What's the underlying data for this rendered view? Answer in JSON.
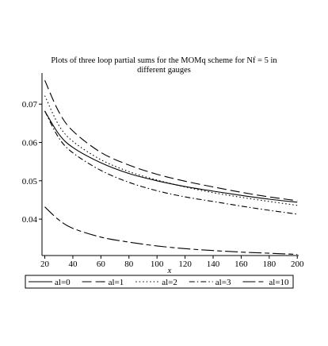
{
  "chart_data": {
    "type": "line",
    "title": [
      "Plots of three loop partial sums for the MOMq scheme for Nf = 5 in",
      "different gauges"
    ],
    "xlabel": "x",
    "ylabel": "",
    "xlim": [
      18,
      201
    ],
    "ylim": [
      0.0305,
      0.0775
    ],
    "xticks": [
      20,
      40,
      60,
      80,
      100,
      120,
      140,
      160,
      180,
      200
    ],
    "yticks": [
      0.04,
      0.05,
      0.06,
      0.07
    ],
    "ytick_labels": [
      "0.04",
      "0.05",
      "0.06",
      "0.07"
    ],
    "grid": false,
    "legend_position": "bottom",
    "series": [
      {
        "name": "al=0",
        "dash": "solid",
        "x": [
          20,
          30,
          40,
          60,
          80,
          100,
          120,
          140,
          160,
          180,
          200
        ],
        "y": [
          0.0682,
          0.0622,
          0.0587,
          0.0547,
          0.0519,
          0.05,
          0.0485,
          0.0473,
          0.0462,
          0.0452,
          0.0444
        ]
      },
      {
        "name": "al=1",
        "dash": "long-dash",
        "x": [
          20,
          30,
          40,
          60,
          80,
          100,
          120,
          140,
          160,
          180,
          200
        ],
        "y": [
          0.0762,
          0.068,
          0.063,
          0.0574,
          0.0541,
          0.0517,
          0.0499,
          0.0484,
          0.047,
          0.0458,
          0.0448
        ]
      },
      {
        "name": "al=2",
        "dash": "dot",
        "x": [
          20,
          30,
          40,
          60,
          80,
          100,
          120,
          140,
          160,
          180,
          200
        ],
        "y": [
          0.0722,
          0.0645,
          0.0603,
          0.0555,
          0.0524,
          0.0502,
          0.0484,
          0.0469,
          0.0457,
          0.0446,
          0.0436
        ]
      },
      {
        "name": "al=3",
        "dash": "dash-dot",
        "x": [
          20,
          30,
          40,
          60,
          80,
          100,
          120,
          140,
          160,
          180,
          200
        ],
        "y": [
          0.0682,
          0.0612,
          0.0573,
          0.0527,
          0.0496,
          0.0474,
          0.0458,
          0.0446,
          0.0434,
          0.0423,
          0.0413
        ]
      },
      {
        "name": "al=10",
        "dash": "long-short-dash",
        "x": [
          20,
          30,
          40,
          60,
          80,
          100,
          120,
          140,
          160,
          180,
          200
        ],
        "y": [
          0.0432,
          0.0398,
          0.0376,
          0.0353,
          0.034,
          0.033,
          0.0323,
          0.0318,
          0.0314,
          0.0311,
          0.0308
        ]
      }
    ]
  }
}
